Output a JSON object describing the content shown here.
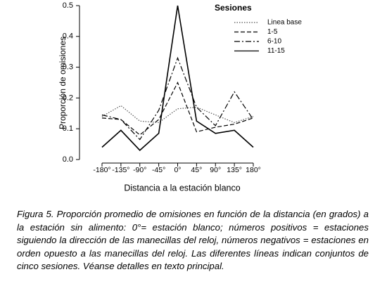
{
  "chart_data": {
    "type": "line",
    "ylabel": "Proporción de omisiones",
    "xlabel": "Distancia a la estación blanco",
    "categories": [
      "-180°",
      "-135°",
      "-90°",
      "-45°",
      "0°",
      "45°",
      "90°",
      "135°",
      "180°"
    ],
    "ylim": [
      0,
      0.5
    ],
    "yticks": [
      {
        "value": 0,
        "label": "0.0"
      },
      0.1,
      0.2,
      0.3,
      0.4,
      0.5
    ],
    "grid": false,
    "legend_title": "Sesiones",
    "legend_position": "upper right",
    "series": [
      {
        "name": "Linea base",
        "color": "#555555",
        "dash": "dotted",
        "values": [
          0.14,
          0.175,
          0.125,
          0.12,
          0.165,
          0.17,
          0.145,
          0.12,
          0.14
        ]
      },
      {
        "name": "1-5",
        "color": "#000000",
        "dash": "dashed",
        "values": [
          0.135,
          0.13,
          0.08,
          0.13,
          0.25,
          0.09,
          0.105,
          0.115,
          0.135
        ]
      },
      {
        "name": "6-10",
        "color": "#000000",
        "dash": "dashdot",
        "values": [
          0.145,
          0.13,
          0.065,
          0.16,
          0.33,
          0.17,
          0.11,
          0.22,
          0.13
        ]
      },
      {
        "name": "11-15",
        "color": "#000000",
        "dash": "solid",
        "values": [
          0.04,
          0.095,
          0.03,
          0.085,
          0.5,
          0.125,
          0.085,
          0.095,
          0.04
        ]
      }
    ]
  },
  "caption": {
    "label": "Figura 5.",
    "text": "Proporción promedio de omisiones en función de la distancia (en grados) a la estación sin alimento: 0°= estación blanco; números positivos = estaciones siguiendo la dirección de las manecillas del reloj, números negativos = estaciones en orden opuesto a las manecillas del reloj. Las diferentes líneas indican conjuntos de cinco sesiones. Véanse detalles en texto principal."
  }
}
